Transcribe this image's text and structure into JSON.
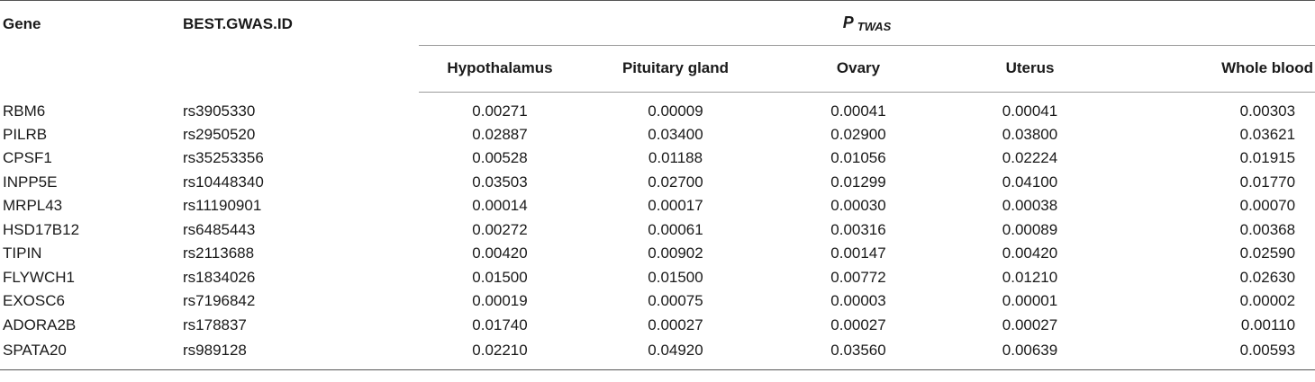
{
  "table": {
    "headers": {
      "gene": "Gene",
      "id": "BEST.GWAS.ID",
      "p_label": "P",
      "p_subscript": "TWAS",
      "tissues": [
        "Hypothalamus",
        "Pituitary gland",
        "Ovary",
        "Uterus",
        "Whole blood"
      ]
    },
    "rows": [
      {
        "gene": "RBM6",
        "id": "rs3905330",
        "values": [
          "0.00271",
          "0.00009",
          "0.00041",
          "0.00041",
          "0.00303"
        ]
      },
      {
        "gene": "PILRB",
        "id": "rs2950520",
        "values": [
          "0.02887",
          "0.03400",
          "0.02900",
          "0.03800",
          "0.03621"
        ]
      },
      {
        "gene": "CPSF1",
        "id": "rs35253356",
        "values": [
          "0.00528",
          "0.01188",
          "0.01056",
          "0.02224",
          "0.01915"
        ]
      },
      {
        "gene": "INPP5E",
        "id": "rs10448340",
        "values": [
          "0.03503",
          "0.02700",
          "0.01299",
          "0.04100",
          "0.01770"
        ]
      },
      {
        "gene": "MRPL43",
        "id": "rs11190901",
        "values": [
          "0.00014",
          "0.00017",
          "0.00030",
          "0.00038",
          "0.00070"
        ]
      },
      {
        "gene": "HSD17B12",
        "id": "rs6485443",
        "values": [
          "0.00272",
          "0.00061",
          "0.00316",
          "0.00089",
          "0.00368"
        ]
      },
      {
        "gene": "TIPIN",
        "id": "rs2113688",
        "values": [
          "0.00420",
          "0.00902",
          "0.00147",
          "0.00420",
          "0.02590"
        ]
      },
      {
        "gene": "FLYWCH1",
        "id": "rs1834026",
        "values": [
          "0.01500",
          "0.01500",
          "0.00772",
          "0.01210",
          "0.02630"
        ]
      },
      {
        "gene": "EXOSC6",
        "id": "rs7196842",
        "values": [
          "0.00019",
          "0.00075",
          "0.00003",
          "0.00001",
          "0.00002"
        ]
      },
      {
        "gene": "ADORA2B",
        "id": "rs178837",
        "values": [
          "0.01740",
          "0.00027",
          "0.00027",
          "0.00027",
          "0.00110"
        ]
      },
      {
        "gene": "SPATA20",
        "id": "rs989128",
        "values": [
          "0.02210",
          "0.04920",
          "0.03560",
          "0.00639",
          "0.00593"
        ]
      }
    ]
  }
}
